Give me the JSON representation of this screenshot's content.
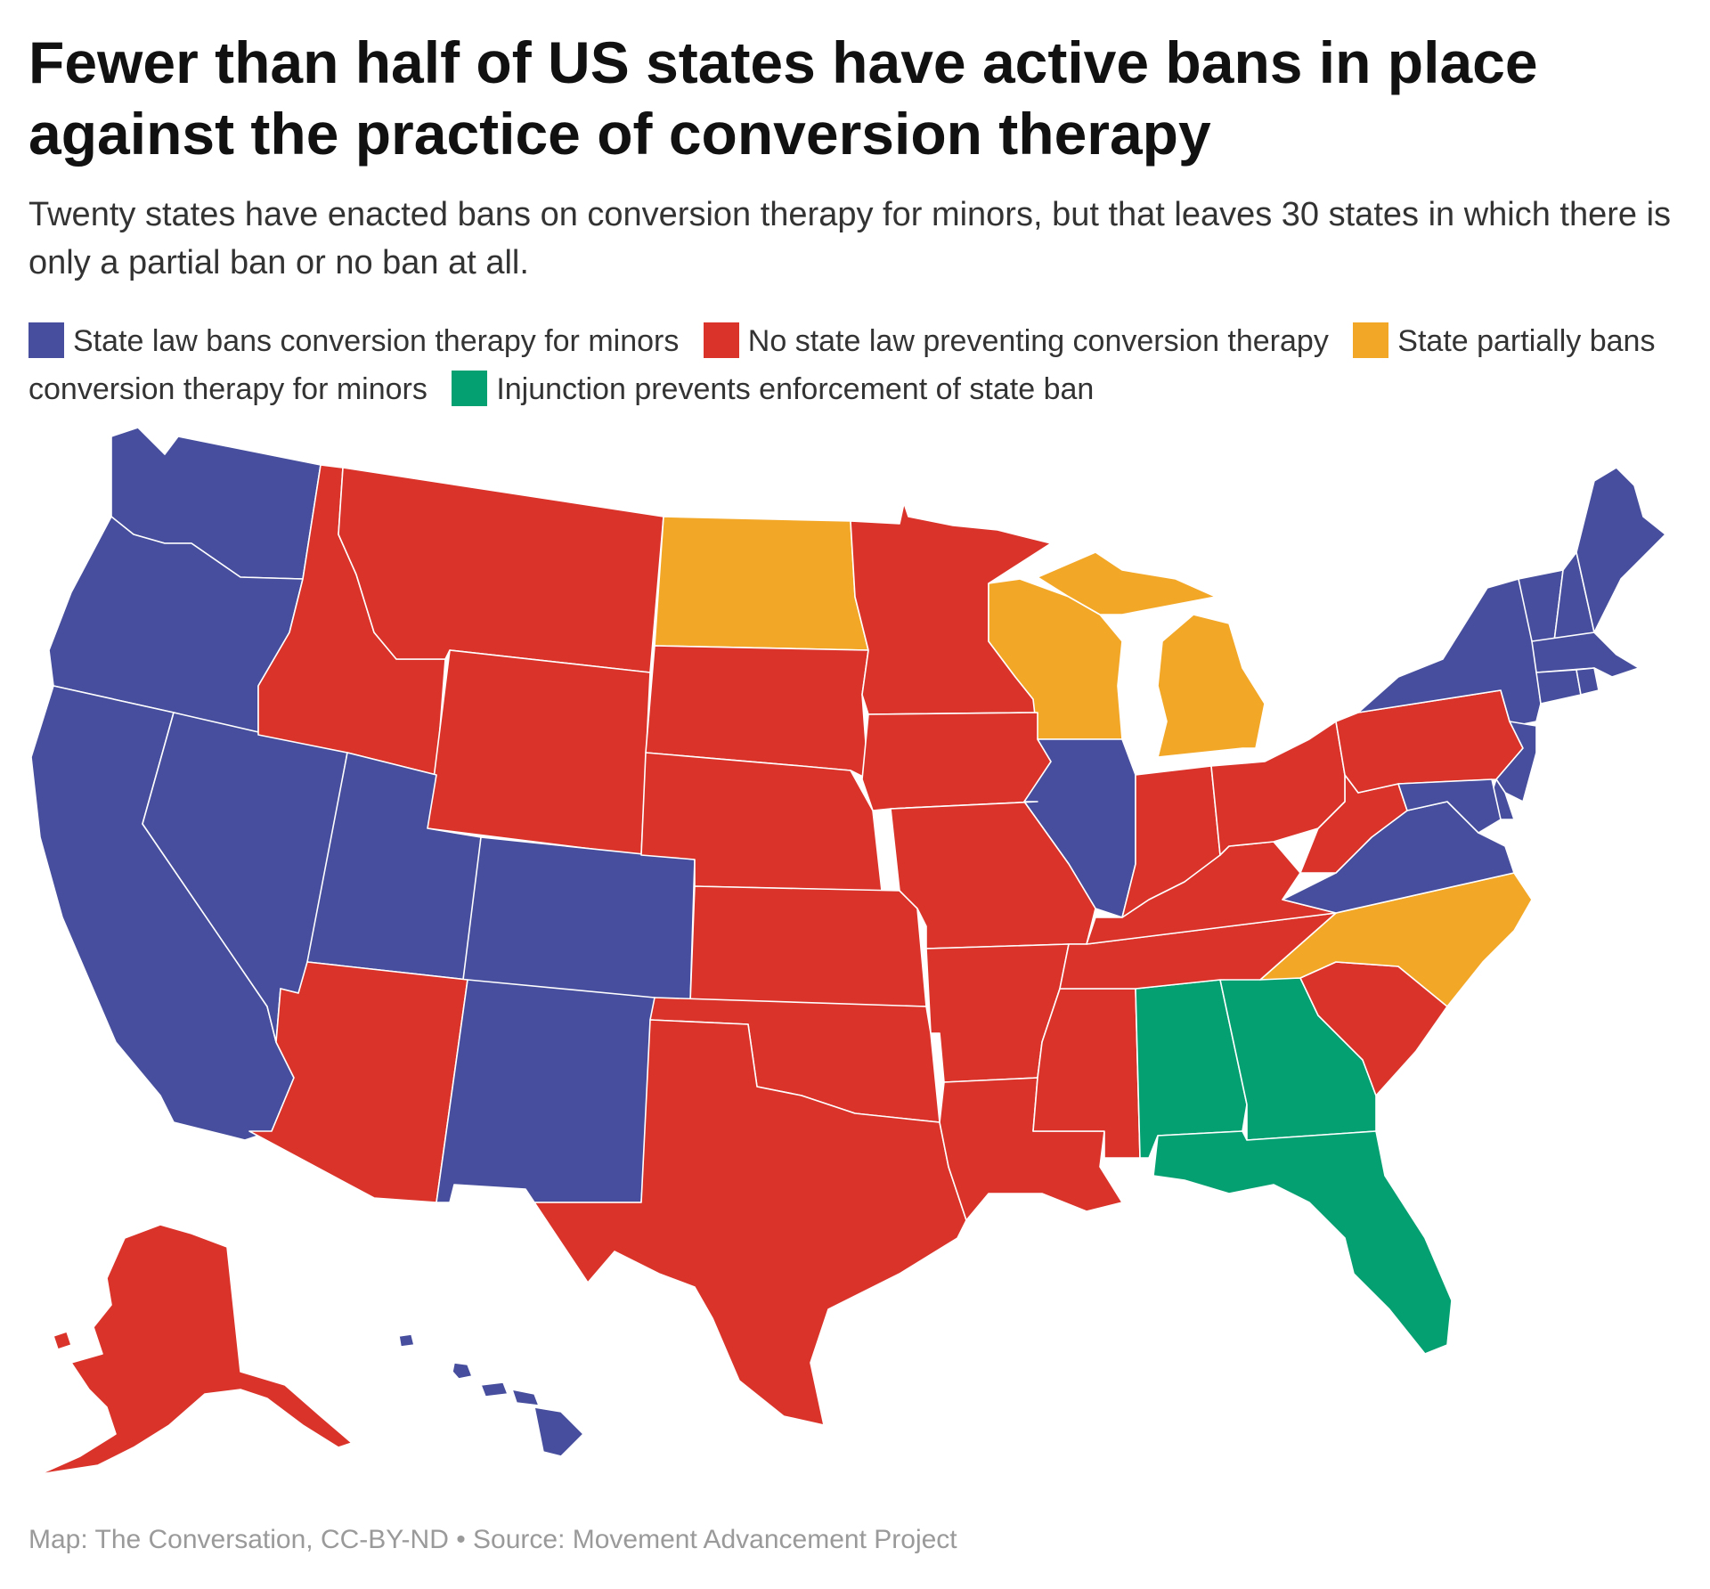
{
  "title": "Fewer than half of US states have active bans in place against the practice of conversion therapy",
  "subtitle": "Twenty states have enacted bans on conversion therapy for minors, but that leaves 30 states in which there is only a partial ban or no ban at all.",
  "legend": [
    {
      "key": "ban",
      "label": "State law bans conversion therapy for minors",
      "color": "#464e9d"
    },
    {
      "key": "none",
      "label": "No state law preventing conversion therapy",
      "color": "#d9332a"
    },
    {
      "key": "partial",
      "label": "State partially bans conversion therapy for minors",
      "color": "#f3a727"
    },
    {
      "key": "injunction",
      "label": "Injunction prevents enforcement of state ban",
      "color": "#05a072"
    }
  ],
  "source": "Map: The Conversation, CC-BY-ND • Source: Movement Advancement Project",
  "map": {
    "background": "#ffffff",
    "states": {
      "washington": "ban",
      "oregon": "ban",
      "california": "ban",
      "nevada": "ban",
      "utah": "ban",
      "colorado": "ban",
      "new-mexico": "ban",
      "hawaii": "ban",
      "illinois": "ban",
      "new-york": "ban",
      "vermont": "ban",
      "new-hampshire": "ban",
      "maine": "ban",
      "massachusetts": "ban",
      "connecticut": "ban",
      "rhode-island": "ban",
      "new-jersey": "ban",
      "delaware": "ban",
      "maryland": "ban",
      "virginia": "ban",
      "idaho": "none",
      "montana": "none",
      "wyoming": "none",
      "south-dakota": "none",
      "nebraska": "none",
      "kansas": "none",
      "oklahoma": "none",
      "texas": "none",
      "arizona": "none",
      "alaska": "none",
      "minnesota": "none",
      "iowa": "none",
      "missouri": "none",
      "arkansas": "none",
      "louisiana": "none",
      "mississippi": "none",
      "tennessee": "none",
      "kentucky": "none",
      "indiana": "none",
      "ohio": "none",
      "west-virginia": "none",
      "pennsylvania": "none",
      "south-carolina": "none",
      "north-dakota": "partial",
      "wisconsin": "partial",
      "michigan": "partial",
      "north-carolina": "partial",
      "alabama": "injunction",
      "georgia": "injunction",
      "florida": "injunction"
    }
  }
}
